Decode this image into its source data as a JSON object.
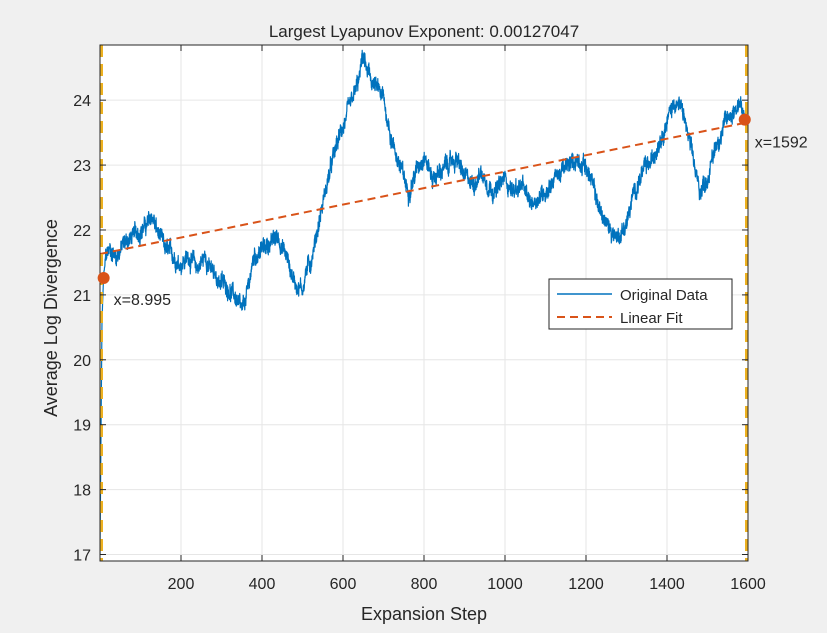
{
  "chart_data": {
    "type": "line",
    "title": "Largest Lyapunov Exponent: 0.00127047",
    "xlabel": "Expansion Step",
    "ylabel": "Average Log Divergence",
    "xlim": [
      0,
      1600
    ],
    "ylim": [
      16.9,
      24.85
    ],
    "xticks": [
      200,
      400,
      600,
      800,
      1000,
      1200,
      1400,
      1600
    ],
    "yticks": [
      17,
      18,
      19,
      20,
      21,
      22,
      23,
      24
    ],
    "grid": true,
    "legend_position": "right",
    "colors": {
      "data": "#0072BD",
      "fit": "#D95319",
      "marker": "#D95319",
      "bounds": "#EDB120",
      "axes_bg": "#ffffff",
      "figure_bg": "#f0f0f0",
      "grid": "#e6e6e6"
    },
    "series": [
      {
        "name": "Original Data",
        "style": "solid",
        "approx_x": [
          0,
          2,
          5,
          9,
          15,
          25,
          40,
          60,
          80,
          100,
          120,
          130,
          140,
          160,
          180,
          200,
          220,
          240,
          260,
          280,
          300,
          320,
          340,
          350,
          360,
          380,
          400,
          420,
          440,
          460,
          480,
          500,
          510,
          520,
          540,
          560,
          580,
          600,
          620,
          640,
          650,
          660,
          680,
          700,
          720,
          740,
          760,
          780,
          800,
          820,
          840,
          860,
          880,
          900,
          920,
          940,
          960,
          980,
          1000,
          1020,
          1040,
          1060,
          1080,
          1100,
          1120,
          1140,
          1160,
          1180,
          1200,
          1220,
          1240,
          1260,
          1280,
          1300,
          1320,
          1340,
          1360,
          1380,
          1400,
          1420,
          1440,
          1460,
          1480,
          1500,
          1520,
          1540,
          1560,
          1580,
          1592
        ],
        "approx_y": [
          17.0,
          18.5,
          20.6,
          21.3,
          21.6,
          21.7,
          21.6,
          21.8,
          21.9,
          22.0,
          22.1,
          22.2,
          22.0,
          21.7,
          21.6,
          21.5,
          21.6,
          21.4,
          21.6,
          21.3,
          21.2,
          21.1,
          20.9,
          20.7,
          20.9,
          21.6,
          21.7,
          21.8,
          21.9,
          21.6,
          21.2,
          21.1,
          21.4,
          21.5,
          22.1,
          22.7,
          23.2,
          23.6,
          23.9,
          24.3,
          24.7,
          24.4,
          24.2,
          24.0,
          23.4,
          23.0,
          22.6,
          22.9,
          23.2,
          22.8,
          22.9,
          23.0,
          23.1,
          22.8,
          22.7,
          22.9,
          22.7,
          22.6,
          22.8,
          22.6,
          22.7,
          22.4,
          22.5,
          22.6,
          22.8,
          22.9,
          23.0,
          23.1,
          23.0,
          22.6,
          22.2,
          22.0,
          21.9,
          22.1,
          22.6,
          22.9,
          23.0,
          23.4,
          23.7,
          24.0,
          23.8,
          23.2,
          22.6,
          22.8,
          23.3,
          23.6,
          23.8,
          24.0,
          23.6
        ]
      },
      {
        "name": "Linear Fit",
        "style": "dashed",
        "x": [
          0,
          1600
        ],
        "y": [
          21.63,
          23.66
        ]
      }
    ],
    "markers": [
      {
        "x": 8.995,
        "y": 21.26,
        "label": "x=8.995"
      },
      {
        "x": 1592,
        "y": 23.7,
        "label": "x=1592"
      }
    ],
    "vertical_lines": [
      {
        "x": 0,
        "style": "dashed"
      },
      {
        "x": 1600,
        "style": "dashed"
      }
    ]
  }
}
